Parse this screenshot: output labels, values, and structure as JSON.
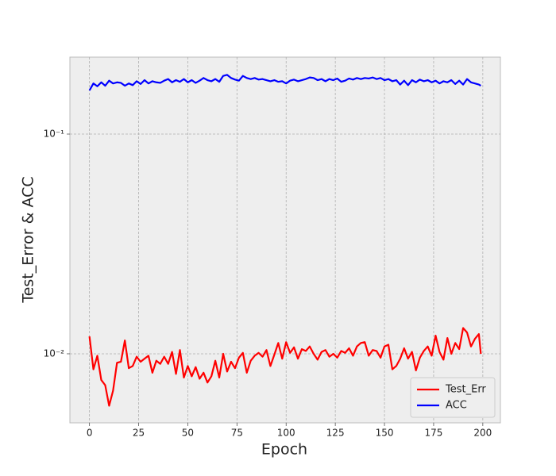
{
  "chart_data": {
    "type": "line",
    "xlabel": "Epoch",
    "ylabel": "Test_Error & ACC",
    "x": [
      0,
      2,
      4,
      6,
      8,
      10,
      12,
      14,
      16,
      18,
      20,
      22,
      24,
      26,
      28,
      30,
      32,
      34,
      36,
      38,
      40,
      42,
      44,
      46,
      48,
      50,
      52,
      54,
      56,
      58,
      60,
      62,
      64,
      66,
      68,
      70,
      72,
      74,
      76,
      78,
      80,
      82,
      84,
      86,
      88,
      90,
      92,
      94,
      96,
      98,
      100,
      102,
      104,
      106,
      108,
      110,
      112,
      114,
      116,
      118,
      120,
      122,
      124,
      126,
      128,
      130,
      132,
      134,
      136,
      138,
      140,
      142,
      144,
      146,
      148,
      150,
      152,
      154,
      156,
      158,
      160,
      162,
      164,
      166,
      168,
      170,
      172,
      174,
      176,
      178,
      180,
      182,
      184,
      186,
      188,
      190,
      192,
      194,
      196,
      198,
      199
    ],
    "series": [
      {
        "name": "Test_Err",
        "color": "#ff0000",
        "values": [
          0.012,
          0.0085,
          0.0098,
          0.0076,
          0.0072,
          0.0058,
          0.0068,
          0.0091,
          0.0092,
          0.0115,
          0.0086,
          0.0088,
          0.0097,
          0.0092,
          0.0095,
          0.0098,
          0.0082,
          0.0093,
          0.009,
          0.0097,
          0.009,
          0.0102,
          0.0081,
          0.0104,
          0.0078,
          0.0088,
          0.0079,
          0.0087,
          0.0077,
          0.0082,
          0.0074,
          0.0079,
          0.0093,
          0.0078,
          0.01,
          0.0083,
          0.0092,
          0.0086,
          0.0096,
          0.0101,
          0.0082,
          0.0093,
          0.0098,
          0.0101,
          0.0097,
          0.0104,
          0.0088,
          0.0099,
          0.0112,
          0.0095,
          0.0113,
          0.0101,
          0.0107,
          0.0095,
          0.0105,
          0.0103,
          0.0108,
          0.01,
          0.0094,
          0.0102,
          0.0104,
          0.0097,
          0.01,
          0.0096,
          0.0103,
          0.0101,
          0.0106,
          0.0098,
          0.0108,
          0.0112,
          0.0113,
          0.0098,
          0.0104,
          0.0103,
          0.0096,
          0.0108,
          0.011,
          0.0085,
          0.0088,
          0.0095,
          0.0106,
          0.0095,
          0.0102,
          0.0084,
          0.0096,
          0.0103,
          0.0108,
          0.0098,
          0.0121,
          0.0102,
          0.0094,
          0.0118,
          0.01,
          0.0112,
          0.0105,
          0.0131,
          0.0125,
          0.0108,
          0.0117,
          0.0123,
          0.01
        ]
      },
      {
        "name": "ACC",
        "color": "#0000ff",
        "values": [
          0.158,
          0.17,
          0.165,
          0.172,
          0.166,
          0.175,
          0.17,
          0.172,
          0.171,
          0.166,
          0.17,
          0.167,
          0.174,
          0.169,
          0.176,
          0.17,
          0.174,
          0.172,
          0.171,
          0.175,
          0.178,
          0.172,
          0.176,
          0.173,
          0.178,
          0.172,
          0.176,
          0.171,
          0.175,
          0.18,
          0.176,
          0.174,
          0.178,
          0.173,
          0.184,
          0.186,
          0.18,
          0.177,
          0.175,
          0.184,
          0.18,
          0.178,
          0.18,
          0.177,
          0.178,
          0.176,
          0.174,
          0.176,
          0.173,
          0.174,
          0.17,
          0.175,
          0.177,
          0.174,
          0.176,
          0.178,
          0.181,
          0.18,
          0.176,
          0.178,
          0.174,
          0.178,
          0.176,
          0.179,
          0.173,
          0.175,
          0.179,
          0.177,
          0.18,
          0.178,
          0.18,
          0.179,
          0.181,
          0.178,
          0.18,
          0.176,
          0.178,
          0.174,
          0.176,
          0.168,
          0.175,
          0.167,
          0.176,
          0.172,
          0.177,
          0.174,
          0.176,
          0.172,
          0.175,
          0.17,
          0.174,
          0.172,
          0.176,
          0.169,
          0.175,
          0.168,
          0.178,
          0.172,
          0.17,
          0.168,
          0.166
        ]
      }
    ],
    "xlim": [
      -9.95,
      208.95
    ],
    "xticks": [
      0,
      25,
      50,
      75,
      100,
      125,
      150,
      175,
      200
    ],
    "ylim": [
      0.00485,
      0.224
    ],
    "log_y": true,
    "yticks": [
      {
        "value": 0.01,
        "label": "10⁻²"
      },
      {
        "value": 0.1,
        "label": "10⁻¹"
      }
    ],
    "grid": true,
    "legend": "lower right"
  }
}
